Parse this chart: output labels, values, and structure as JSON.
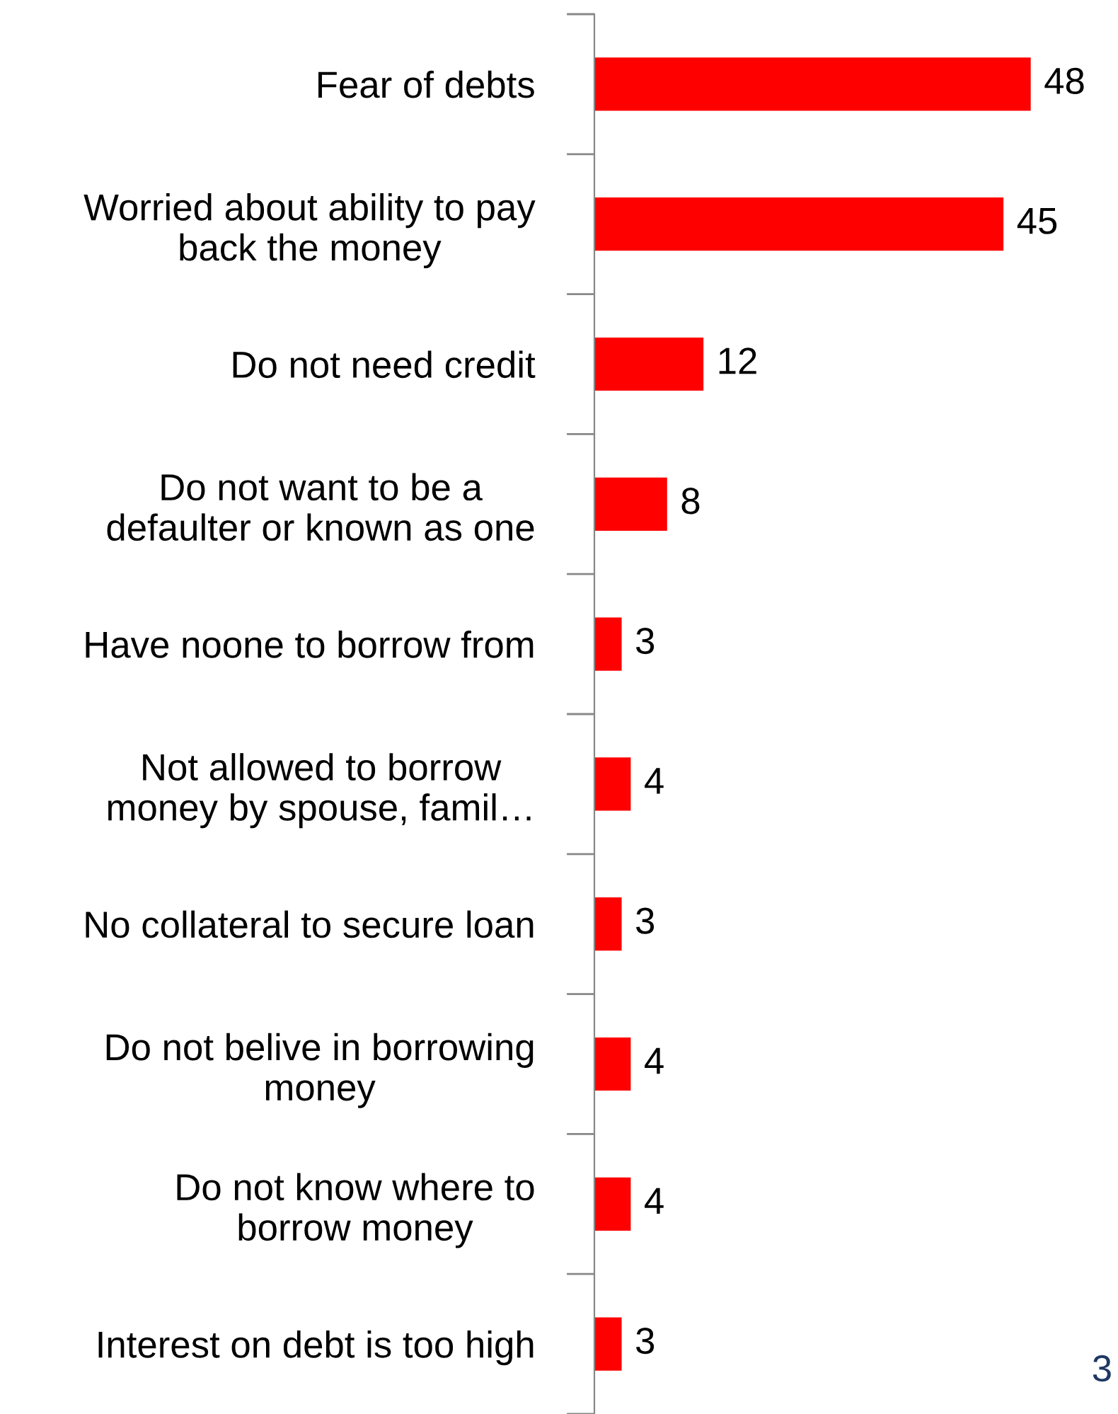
{
  "chart_data": {
    "type": "bar",
    "orientation": "horizontal",
    "categories": [
      "Fear of debts",
      "Worried about ability to pay\nback the money",
      "Do not need credit",
      "Do not want to be a\ndefaulter or known as one",
      "Have noone to borrow from",
      "Not allowed to borrow\nmoney by spouse, famil…",
      "No collateral to secure loan",
      "Do not belive in borrowing\nmoney",
      "Do not know where to\nborrow money",
      "Interest on debt is too high"
    ],
    "values": [
      48,
      45,
      12,
      8,
      3,
      4,
      3,
      4,
      4,
      3
    ],
    "color": "#ff0000",
    "data_labels": true,
    "annotations": [
      "3"
    ]
  }
}
